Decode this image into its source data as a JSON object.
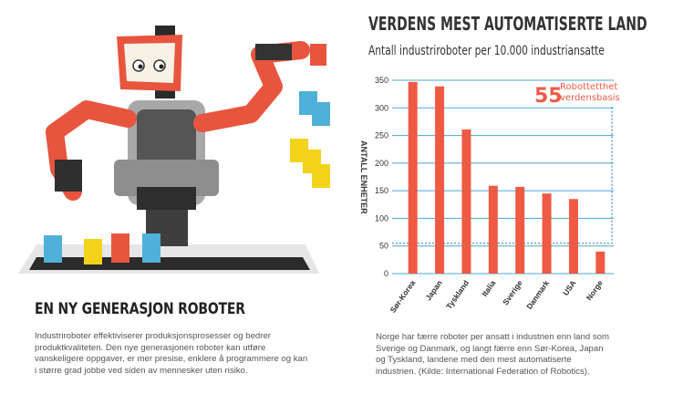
{
  "left": {
    "title": "EN NY GENERASJON ROBOTER",
    "body": "Industriroboter effektiviserer produksjonsprosesser og bedrer produktkvaliteten. Den nye generasjonen roboter kan utføre vanskeligere oppgaver, er mer presise, enklere å programmere og kan i større grad jobbe ved siden av mennesker uten risiko."
  },
  "chart_data": {
    "type": "bar",
    "title": "VERDENS MEST AUTOMATISERTE LAND",
    "subtitle": "Antall industriroboter per 10.000 industriansatte",
    "ylabel": "ANTALL ENHETER",
    "xlabel": "",
    "categories": [
      "Sør-Korea",
      "Japan",
      "Tyskland",
      "Italia",
      "Sverige",
      "Danmark",
      "USA",
      "Norge"
    ],
    "values": [
      347,
      339,
      261,
      159,
      157,
      145,
      135,
      40
    ],
    "ylim": [
      0,
      350
    ],
    "yticks": [
      0,
      50,
      100,
      150,
      200,
      250,
      300,
      350
    ],
    "grid": true,
    "annotation": {
      "value": "55",
      "label_line1": "Robottetthet",
      "label_line2": "verdensbasis",
      "reference_value": 55
    },
    "colors": {
      "bar": "#ef5a45",
      "grid": "#4aa8d8",
      "annotation": "#ef5a45",
      "reference_line": "#3a8fc4"
    }
  },
  "right": {
    "body": "Norge har færre roboter per ansatt i industrien enn land som Sverige og Danmark, og langt færre enn Sør-Korea, Japan og Tyskland, landene med den mest automatiserte industrien. (Kilde: International Federation of Robotics)."
  },
  "illustration": {
    "subject": "industrial-robot-with-cups",
    "colors": {
      "arm": "#e8553f",
      "body": "#4a4a4a",
      "gray": "#9a9a9a",
      "cup_blue": "#4fb0d8",
      "cup_yellow": "#f2d21a",
      "cup_red": "#e8553f"
    }
  }
}
